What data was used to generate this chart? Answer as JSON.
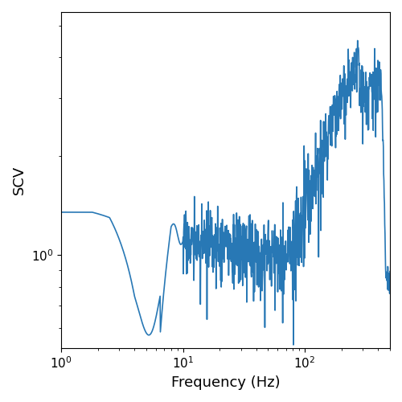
{
  "xlabel": "Frequency (Hz)",
  "ylabel": "SCV",
  "line_color": "#2878b5",
  "line_width": 1.2,
  "xlim": [
    1.0,
    500.0
  ],
  "ylim": [
    0.52,
    5.5
  ],
  "figsize": [
    5.0,
    5.0
  ],
  "dpi": 100
}
